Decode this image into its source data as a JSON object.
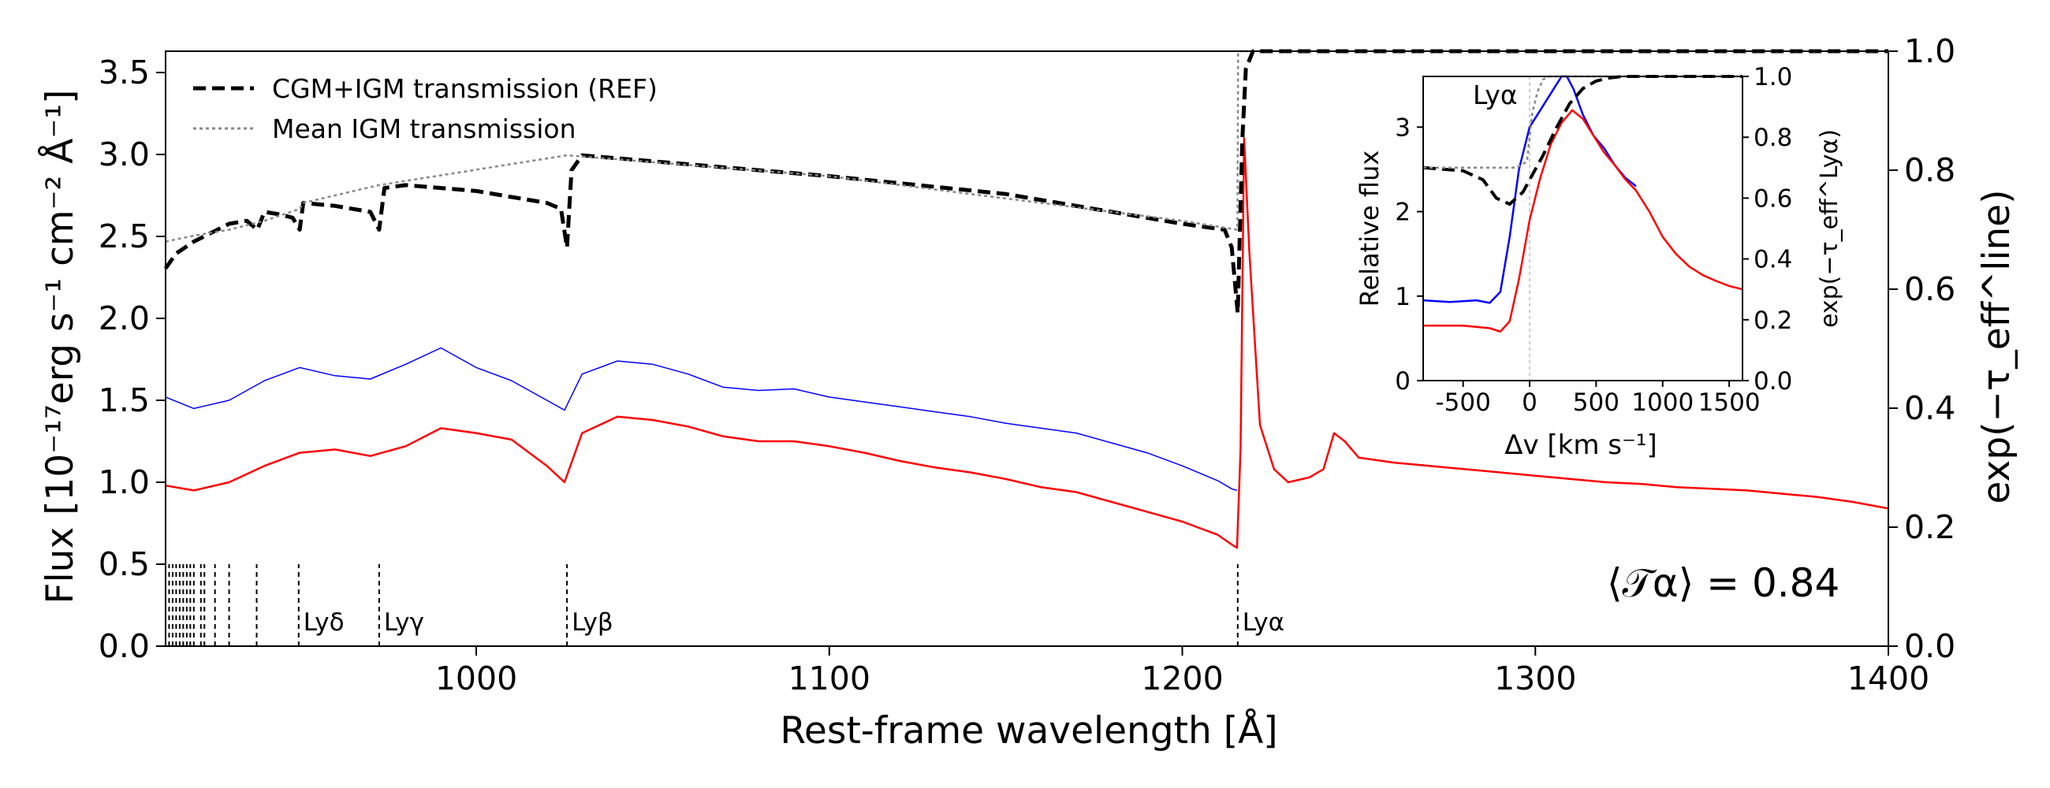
{
  "chart_data": {
    "type": "line",
    "xlabel": "Rest-frame wavelength [Å]",
    "ylabel": "Flux [10⁻¹⁷erg s⁻¹ cm⁻² Å⁻¹]",
    "ylabel_right": "exp(−τ_eff^line)",
    "xlim": [
      912,
      1400
    ],
    "ylim": [
      0,
      3.63
    ],
    "ylim_right": [
      0,
      1
    ],
    "xticks": [
      "1000",
      "1100",
      "1200",
      "1300",
      "1400"
    ],
    "yticks": [
      "0.0",
      "0.5",
      "1.0",
      "1.5",
      "2.0",
      "2.5",
      "3.0",
      "3.5"
    ],
    "yticks_right": [
      "0.0",
      "0.2",
      "0.4",
      "0.6",
      "0.8",
      "1.0"
    ],
    "legend": {
      "ref": "CGM+IGM transmission (REF)",
      "mean": "Mean IGM transmission"
    },
    "annotation": "⟨𝒯α⟩ = 0.84",
    "lyman_lines": [
      {
        "label": "Lyδ",
        "x": 949.7
      },
      {
        "label": "Lyγ",
        "x": 972.5
      },
      {
        "label": "Lyβ",
        "x": 1025.7
      },
      {
        "label": "Lyα",
        "x": 1215.7
      }
    ],
    "series": [
      {
        "name": "Intrinsic spectrum (blue)",
        "color": "#0000ff",
        "x": [
          912,
          920,
          930,
          940,
          950,
          960,
          970,
          980,
          990,
          1000,
          1010,
          1020,
          1025,
          1030,
          1040,
          1050,
          1060,
          1070,
          1080,
          1090,
          1100,
          1110,
          1120,
          1130,
          1140,
          1150,
          1160,
          1170,
          1180,
          1190,
          1200,
          1210,
          1214,
          1215.5
        ],
        "y": [
          1.52,
          1.45,
          1.5,
          1.62,
          1.7,
          1.65,
          1.63,
          1.72,
          1.82,
          1.7,
          1.62,
          1.5,
          1.44,
          1.66,
          1.74,
          1.72,
          1.66,
          1.58,
          1.56,
          1.57,
          1.52,
          1.49,
          1.46,
          1.43,
          1.4,
          1.36,
          1.33,
          1.3,
          1.24,
          1.18,
          1.1,
          1.01,
          0.96,
          0.95
        ]
      },
      {
        "name": "Observed spectrum (red)",
        "color": "#ff0000",
        "x": [
          912,
          920,
          930,
          940,
          950,
          960,
          970,
          980,
          990,
          1000,
          1010,
          1020,
          1025,
          1030,
          1040,
          1050,
          1060,
          1070,
          1080,
          1090,
          1100,
          1110,
          1120,
          1130,
          1140,
          1150,
          1160,
          1170,
          1180,
          1190,
          1200,
          1210,
          1214,
          1215.5,
          1216.5,
          1217.5,
          1219,
          1222,
          1226,
          1230,
          1236,
          1240,
          1243,
          1246,
          1250,
          1260,
          1270,
          1280,
          1290,
          1300,
          1310,
          1320,
          1330,
          1340,
          1350,
          1360,
          1370,
          1380,
          1390,
          1400
        ],
        "y": [
          0.98,
          0.95,
          1.0,
          1.1,
          1.18,
          1.2,
          1.16,
          1.22,
          1.33,
          1.3,
          1.26,
          1.1,
          1.0,
          1.3,
          1.4,
          1.38,
          1.34,
          1.28,
          1.25,
          1.25,
          1.22,
          1.18,
          1.13,
          1.09,
          1.06,
          1.02,
          0.97,
          0.94,
          0.88,
          0.82,
          0.76,
          0.68,
          0.62,
          0.6,
          1.2,
          3.1,
          2.4,
          1.35,
          1.08,
          1.0,
          1.03,
          1.08,
          1.3,
          1.25,
          1.15,
          1.12,
          1.1,
          1.08,
          1.06,
          1.04,
          1.02,
          1.0,
          0.99,
          0.97,
          0.96,
          0.95,
          0.93,
          0.91,
          0.88,
          0.84
        ]
      },
      {
        "name": "CGM+IGM transmission (REF)",
        "color": "#000000",
        "axis": "right",
        "dash": "dashed",
        "x": [
          912,
          915,
          920,
          925,
          930,
          935,
          938,
          940,
          945,
          948,
          950,
          951,
          960,
          970,
          972.5,
          974,
          980,
          990,
          1000,
          1010,
          1020,
          1024,
          1025.7,
          1027,
          1030,
          1050,
          1100,
          1150,
          1200,
          1212,
          1214,
          1215.7,
          1217,
          1218,
          1220,
          1400
        ],
        "y": [
          0.635,
          0.66,
          0.68,
          0.695,
          0.71,
          0.715,
          0.7,
          0.73,
          0.725,
          0.72,
          0.7,
          0.745,
          0.74,
          0.73,
          0.7,
          0.77,
          0.775,
          0.77,
          0.765,
          0.755,
          0.745,
          0.735,
          0.67,
          0.8,
          0.825,
          0.815,
          0.79,
          0.76,
          0.71,
          0.7,
          0.67,
          0.56,
          0.85,
          0.97,
          1.0,
          1.0
        ]
      },
      {
        "name": "Mean IGM transmission",
        "color": "#888888",
        "axis": "right",
        "dash": "dotted",
        "x": [
          912,
          920,
          930,
          940,
          950,
          951,
          972.4,
          972.6,
          1025.6,
          1025.8,
          1100,
          1200,
          1215.6,
          1215.8,
          1400
        ],
        "y": [
          0.68,
          0.69,
          0.7,
          0.715,
          0.735,
          0.745,
          0.775,
          0.775,
          0.825,
          0.825,
          0.79,
          0.715,
          0.7,
          1.0,
          1.0
        ]
      }
    ],
    "inset": {
      "title": "Lyα",
      "xlabel": "Δv [km s⁻¹]",
      "ylabel": "Relative flux",
      "ylabel_right": "exp(−τ_eff^Lyα)",
      "xlim": [
        -800,
        1600
      ],
      "ylim": [
        0,
        3.6
      ],
      "ylim_right": [
        0,
        1
      ],
      "xticks": [
        "-500",
        "0",
        "500",
        "1000",
        "1500"
      ],
      "yticks": [
        "0",
        "1",
        "2",
        "3"
      ],
      "yticks_right": [
        "0.0",
        "0.2",
        "0.4",
        "0.6",
        "0.8",
        "1.0"
      ],
      "series": [
        {
          "name": "Intrinsic (blue)",
          "color": "#0000ff",
          "x": [
            -800,
            -600,
            -400,
            -300,
            -220,
            -150,
            -80,
            0,
            80,
            160,
            240,
            280,
            330,
            400,
            480,
            560,
            640,
            720,
            800
          ],
          "y": [
            0.95,
            0.93,
            0.95,
            0.92,
            1.05,
            1.7,
            2.5,
            3.0,
            3.2,
            3.4,
            3.6,
            3.6,
            3.45,
            3.15,
            2.9,
            2.75,
            2.55,
            2.4,
            2.3
          ]
        },
        {
          "name": "Observed (red)",
          "color": "#ff0000",
          "x": [
            -800,
            -500,
            -300,
            -220,
            -150,
            -80,
            0,
            80,
            160,
            240,
            320,
            400,
            480,
            560,
            640,
            720,
            800,
            900,
            1000,
            1100,
            1200,
            1300,
            1400,
            1500,
            1600
          ],
          "y": [
            0.65,
            0.65,
            0.62,
            0.58,
            0.7,
            1.2,
            1.9,
            2.4,
            2.8,
            3.05,
            3.2,
            3.1,
            2.9,
            2.7,
            2.55,
            2.38,
            2.25,
            2.0,
            1.7,
            1.5,
            1.35,
            1.25,
            1.18,
            1.12,
            1.08
          ]
        },
        {
          "name": "CGM+IGM transmission (REF)",
          "color": "#000000",
          "axis": "right",
          "dash": "dashed",
          "x": [
            -800,
            -500,
            -350,
            -250,
            -150,
            -50,
            0,
            100,
            200,
            300,
            400,
            500,
            600,
            700,
            1600
          ],
          "y": [
            0.7,
            0.69,
            0.66,
            0.6,
            0.58,
            0.62,
            0.66,
            0.74,
            0.83,
            0.91,
            0.96,
            0.985,
            0.995,
            1.0,
            1.0
          ]
        },
        {
          "name": "Mean IGM transmission",
          "color": "#888888",
          "axis": "right",
          "dash": "dotted",
          "x": [
            -800,
            -100,
            -20,
            0,
            20,
            60,
            100,
            150,
            200,
            1600
          ],
          "y": [
            0.7,
            0.7,
            0.72,
            0.8,
            0.88,
            0.95,
            0.99,
            1.0,
            1.0,
            1.0
          ]
        }
      ]
    }
  }
}
